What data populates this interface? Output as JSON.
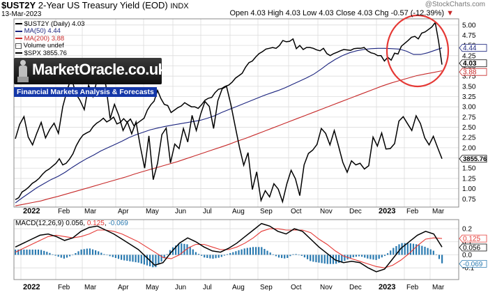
{
  "header": {
    "symbol": "$UST2Y",
    "description": "2-Year US Treasury Yield (EOD)",
    "exchange": "INDX",
    "date": "13-Mar-2023",
    "ohlc": "Open 4.03  High 4.03  Low 4.03  Close 4.03  Chg -0.57 (-12.39%)",
    "ohlc_arrow": "▼",
    "watermark": "@StockCharts.com"
  },
  "legend": [
    {
      "text": "$UST2Y (Daily) 4.03",
      "color": "#000000",
      "marker": "line"
    },
    {
      "text": "MA(50) 4.44",
      "color": "#1a237e",
      "marker": "line"
    },
    {
      "text": "MA(200) 3.88",
      "color": "#c62828",
      "marker": "line"
    },
    {
      "text": "Volume undef",
      "color": "#555555",
      "marker": "box"
    },
    {
      "text": "$SPX 3855.76",
      "color": "#000000",
      "marker": "line"
    }
  ],
  "logo": {
    "name": "MarketOracle.co.uk",
    "tagline": "Financial Markets Analysis & Forecasts"
  },
  "colors": {
    "yield": "#000000",
    "yield_up": "#8e1b3a",
    "ma50": "#1a237e",
    "ma200": "#c62828",
    "spx": "#000000",
    "macd": "#000000",
    "signal": "#e53935",
    "histogram": "#2a7ab0",
    "annotation": "#e53935",
    "grid": "#dcdcdc"
  },
  "chart_data": [
    {
      "type": "line",
      "title": "$UST2Y 2-Year US Treasury Yield (EOD)",
      "x_labels": [
        "2022",
        "Feb",
        "Mar",
        "Apr",
        "May",
        "Jun",
        "Jul",
        "Aug",
        "Sep",
        "Oct",
        "Nov",
        "Dec",
        "2023",
        "Feb",
        "Mar"
      ],
      "y_ticks": [
        "5.00",
        "4.75",
        "4.50",
        "4.25",
        "4.00",
        "3.75",
        "3.50",
        "3.25",
        "3.00",
        "2.75",
        "2.50",
        "2.25",
        "2.00",
        "1.75",
        "1.50",
        "1.25",
        "1.00",
        "0.75"
      ],
      "ylim": [
        0.55,
        5.15
      ],
      "series": [
        {
          "name": "$UST2Y (Daily)",
          "values": [
            0.73,
            0.78,
            0.92,
            0.97,
            1.04,
            1.13,
            1.18,
            1.25,
            1.35,
            1.43,
            1.48,
            1.55,
            1.62,
            1.73,
            1.58,
            1.62,
            1.72,
            1.85,
            2.05,
            2.2,
            2.31,
            2.36,
            2.4,
            2.52,
            2.6,
            2.65,
            2.72,
            2.63,
            2.68,
            2.75,
            2.58,
            2.62,
            2.71,
            2.62,
            2.7,
            2.54,
            2.6,
            2.66,
            2.72,
            2.92,
            3.05,
            3.14,
            3.4,
            3.2,
            3.06,
            3.03,
            2.86,
            2.92,
            2.98,
            3.02,
            3.1,
            3.05,
            3.0,
            3.0,
            2.96,
            3.05,
            3.16,
            3.21,
            3.23,
            3.35,
            3.43,
            3.45,
            3.5,
            3.53,
            3.6,
            3.7,
            3.76,
            3.82,
            3.97,
            4.08,
            4.12,
            4.22,
            4.3,
            4.35,
            4.41,
            4.43,
            4.45,
            4.43,
            4.5,
            4.62,
            4.59,
            4.6,
            4.66,
            4.42,
            4.5,
            4.4,
            4.45,
            4.45,
            4.43,
            4.39,
            4.37,
            4.43,
            4.3,
            4.25,
            4.3,
            4.33,
            4.37,
            4.4,
            4.39,
            4.38,
            4.42,
            4.43,
            4.43,
            4.45,
            4.37,
            4.32,
            4.3,
            4.25,
            4.25,
            4.12,
            4.21,
            4.14,
            4.31,
            4.29,
            4.48,
            4.55,
            4.62,
            4.7,
            4.72,
            4.66,
            4.8,
            4.83,
            4.89,
            4.95,
            5.06,
            4.6,
            4.03
          ]
        },
        {
          "name": "MA(50)",
          "values": [
            0.65,
            0.78,
            0.9,
            1.02,
            1.12,
            1.22,
            1.3,
            1.4,
            1.52,
            1.63,
            1.73,
            1.82,
            1.92,
            2.0,
            2.08,
            2.16,
            2.25,
            2.32,
            2.38,
            2.44,
            2.48,
            2.52,
            2.55,
            2.58,
            2.61,
            2.64,
            2.67,
            2.72,
            2.78,
            2.86,
            2.93,
            3.0,
            3.07,
            3.14,
            3.21,
            3.28,
            3.34,
            3.4,
            3.47,
            3.55,
            3.63,
            3.71,
            3.8,
            3.92,
            4.05,
            4.16,
            4.25,
            4.32,
            4.37,
            4.4,
            4.42,
            4.43,
            4.43,
            4.42,
            4.41,
            4.36,
            4.28,
            4.28,
            4.32,
            4.38,
            4.44
          ]
        },
        {
          "name": "MA(200)",
          "values": [
            0.58,
            0.62,
            0.66,
            0.7,
            0.76,
            0.81,
            0.87,
            0.93,
            0.99,
            1.05,
            1.11,
            1.17,
            1.23,
            1.29,
            1.36,
            1.42,
            1.48,
            1.54,
            1.6,
            1.66,
            1.73,
            1.8,
            1.87,
            1.94,
            2.01,
            2.08,
            2.16,
            2.23,
            2.31,
            2.39,
            2.47,
            2.55,
            2.63,
            2.71,
            2.79,
            2.87,
            2.95,
            3.03,
            3.11,
            3.19,
            3.27,
            3.35,
            3.43,
            3.51,
            3.58,
            3.64,
            3.7,
            3.76,
            3.8,
            3.84,
            3.88
          ]
        },
        {
          "name": "$SPX",
          "values": [
            2.22,
            2.57,
            2.76,
            2.26,
            2.07,
            2.36,
            2.62,
            2.24,
            2.45,
            2.6,
            2.35,
            3.0,
            3.4,
            3.72,
            3.33,
            3.16,
            2.93,
            3.53,
            3.25,
            3.67,
            3.85,
            3.53,
            2.71,
            3.06,
            2.79,
            2.42,
            2.63,
            2.34,
            2.63,
            2.03,
            1.5,
            2.29,
            1.22,
            1.62,
            2.32,
            2.48,
            1.63,
            2.09,
            1.98,
            2.47,
            2.14,
            2.79,
            2.42,
            2.82,
            3.13,
            3.01,
            2.47,
            3.15,
            3.44,
            3.5,
            3.06,
            2.53,
            2.01,
            1.57,
            1.88,
            0.98,
            1.41,
            0.71,
            0.95,
            0.8,
            1.12,
            0.99,
            0.68,
            1.12,
            1.45,
            1.24,
            0.83,
            1.58,
            1.86,
            1.94,
            2.08,
            2.47,
            2.35,
            2.07,
            2.42,
            2.04,
            1.64,
            1.4,
            1.68,
            1.58,
            1.62,
            1.48,
            1.56,
            2.26,
            2.04,
            2.36,
            1.97,
            1.98,
            2.1,
            2.65,
            2.76,
            2.59,
            2.42,
            2.78,
            2.59,
            2.24,
            2.07,
            2.28,
            2.0,
            1.73
          ]
        }
      ]
    },
    {
      "type": "line",
      "title": "MACD(12,26,9) 0.056, 0.125, -0.069",
      "legend_values": {
        "macd": "0.056",
        "signal": "0.125",
        "histogram": "-0.069"
      },
      "x_labels": [
        "2022",
        "Feb",
        "Mar",
        "Apr",
        "May",
        "Jun",
        "Jul",
        "Aug",
        "Sep",
        "Oct",
        "Nov",
        "Dec",
        "2023",
        "Feb",
        "Mar"
      ],
      "y_ticks": [
        "0.2",
        "0.1",
        "0.0",
        "-0.1"
      ],
      "ylim": [
        -0.19,
        0.27
      ],
      "value_labels": [
        "0.125",
        "0.056",
        "-0.069"
      ],
      "series": [
        {
          "name": "MACD",
          "values": [
            0.06,
            0.09,
            0.12,
            0.15,
            0.16,
            0.14,
            0.11,
            0.13,
            0.18,
            0.21,
            0.22,
            0.19,
            0.16,
            0.12,
            0.08,
            0.04,
            -0.02,
            -0.08,
            -0.06,
            0.02,
            0.09,
            0.13,
            0.1,
            0.06,
            0.03,
            0.02,
            0.05,
            0.09,
            0.14,
            0.19,
            0.24,
            0.22,
            0.18,
            0.16,
            0.2,
            0.18,
            0.12,
            0.06,
            0.01,
            -0.04,
            -0.06,
            -0.05,
            -0.06,
            -0.1,
            -0.13,
            -0.11,
            -0.03,
            0.05,
            0.1,
            0.15,
            0.18,
            0.16,
            0.06
          ]
        },
        {
          "name": "Signal",
          "values": [
            0.02,
            0.05,
            0.08,
            0.11,
            0.14,
            0.15,
            0.14,
            0.13,
            0.14,
            0.16,
            0.19,
            0.19,
            0.18,
            0.16,
            0.13,
            0.1,
            0.06,
            0.02,
            -0.02,
            -0.03,
            0.0,
            0.05,
            0.08,
            0.08,
            0.06,
            0.04,
            0.04,
            0.06,
            0.09,
            0.13,
            0.18,
            0.2,
            0.2,
            0.19,
            0.19,
            0.19,
            0.17,
            0.12,
            0.08,
            0.03,
            -0.01,
            -0.03,
            -0.05,
            -0.07,
            -0.09,
            -0.1,
            -0.08,
            -0.04,
            0.01,
            0.07,
            0.12,
            0.13,
            0.125
          ]
        }
      ]
    }
  ]
}
